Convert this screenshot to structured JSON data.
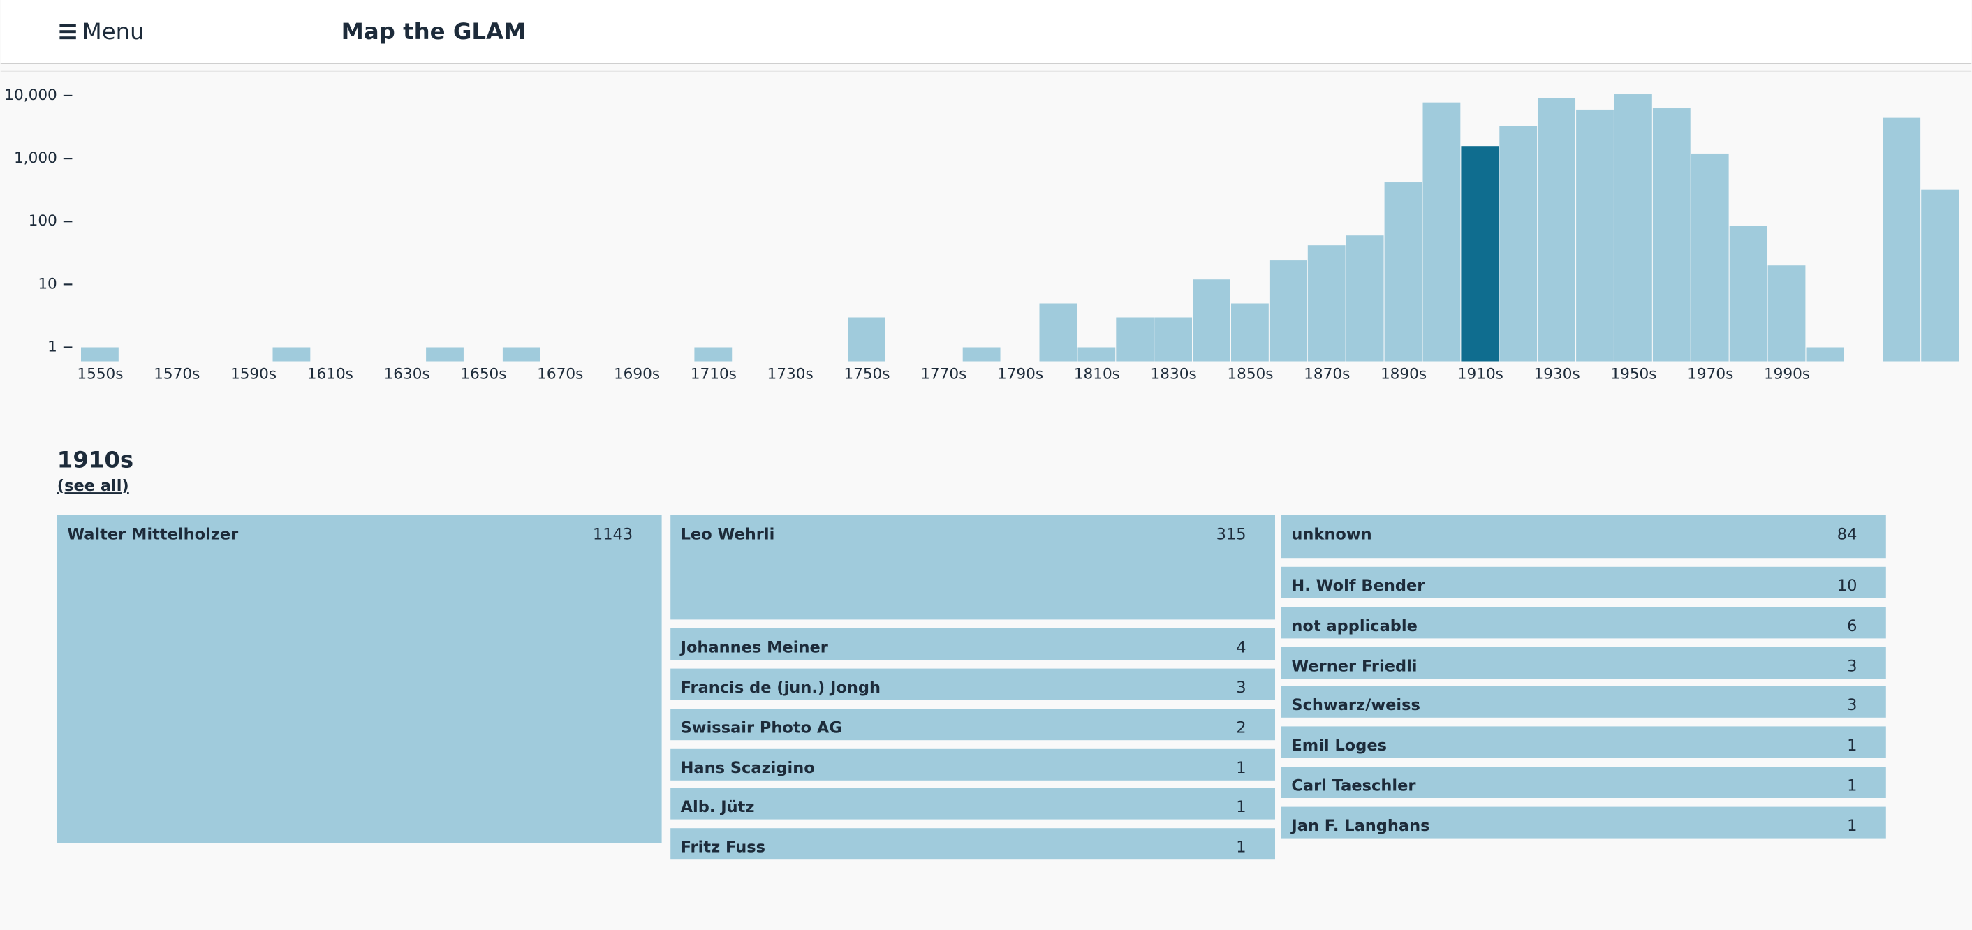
{
  "header": {
    "menu": "Menu",
    "title": "Map the GLAM"
  },
  "chart_data": {
    "type": "bar",
    "log_scale": true,
    "categories": [
      "1550s",
      null,
      "1570s",
      null,
      "1590s",
      null,
      "1610s",
      null,
      "1630s",
      null,
      "1650s",
      null,
      "1670s",
      null,
      "1690s",
      null,
      "1710s",
      null,
      "1730s",
      null,
      "1750s",
      null,
      "1770s",
      null,
      "1790s",
      null,
      "1810s",
      null,
      "1830s",
      null,
      "1850s",
      null,
      "1870s",
      null,
      "1890s",
      null,
      "1910s",
      null,
      "1930s",
      null,
      "1950s",
      null,
      "1970s",
      null,
      "1990s",
      null,
      null,
      null,
      null
    ],
    "values": [
      1,
      0,
      0,
      0,
      0,
      1,
      0,
      0,
      0,
      1,
      0,
      1,
      0,
      0,
      0,
      0,
      1,
      0,
      0,
      0,
      3,
      0,
      0,
      1,
      0,
      5,
      1,
      3,
      3,
      12,
      5,
      24,
      42,
      60,
      420,
      7800,
      1579,
      3300,
      9100,
      6000,
      10500,
      6300,
      1200,
      85,
      20,
      1,
      0,
      4450,
      320
    ],
    "color": "#a0cbdc",
    "highlight_index": 36,
    "highlight_color": "#0f6d8f",
    "ylim": [
      0.6,
      20000
    ],
    "yticks": [
      1,
      10,
      100,
      {
        "value": 1000,
        "label": "1,000"
      },
      {
        "value": 10000,
        "label": "10,000"
      }
    ]
  },
  "detail": {
    "title": "1910s",
    "link": "(see all)",
    "color": "#a0cbdc",
    "items": [
      {
        "name": "Walter Mittelholzer",
        "count": 1143
      },
      {
        "name": "Leo Wehrli",
        "count": 315
      },
      {
        "name": "Johannes Meiner",
        "count": 4
      },
      {
        "name": "Francis de (jun.) Jongh",
        "count": 3
      },
      {
        "name": "Swissair Photo AG",
        "count": 2
      },
      {
        "name": "Hans Scazigino",
        "count": 1
      },
      {
        "name": "Alb. Jütz",
        "count": 1
      },
      {
        "name": "Fritz Fuss",
        "count": 1
      },
      {
        "name": "unknown",
        "count": 84
      },
      {
        "name": "H. Wolf Bender",
        "count": 10
      },
      {
        "name": "not applicable",
        "count": 6
      },
      {
        "name": "Werner Friedli",
        "count": 3
      },
      {
        "name": "Schwarz/weiss",
        "count": 3
      },
      {
        "name": "Emil Loges",
        "count": 1
      },
      {
        "name": "Carl Taeschler",
        "count": 1
      },
      {
        "name": "Jan F. Langhans",
        "count": 1
      }
    ]
  }
}
